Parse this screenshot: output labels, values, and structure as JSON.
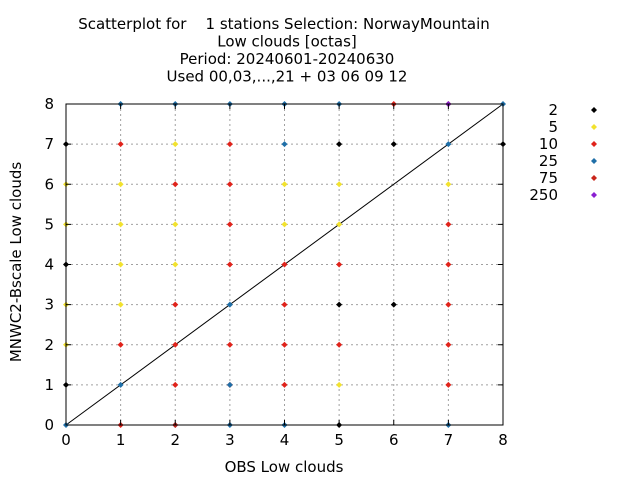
{
  "chart_data": {
    "type": "scatter",
    "title_lines": [
      "Scatterplot for    1 stations Selection: NorwayMountain",
      "Low clouds [octas]",
      "Period: 20240601-20240630",
      "Used 00,03,...,21 + 03 06 09 12"
    ],
    "xlabel": "OBS Low clouds",
    "ylabel": "MNWC2-Bscale Low clouds",
    "xlim": [
      0,
      8
    ],
    "ylim": [
      0,
      8
    ],
    "xticks": [
      "0",
      "1",
      "2",
      "3",
      "4",
      "5",
      "6",
      "7",
      "8"
    ],
    "yticks": [
      "0",
      "1",
      "2",
      "3",
      "4",
      "5",
      "6",
      "7",
      "8"
    ],
    "grid": true,
    "diagonal_line": true,
    "legend_position": "right",
    "series": [
      {
        "name": "2",
        "color": "#000000",
        "points": [
          [
            0,
            1
          ],
          [
            0,
            4
          ],
          [
            0,
            7
          ],
          [
            5,
            0
          ],
          [
            5,
            3
          ],
          [
            5,
            7
          ],
          [
            6,
            3
          ],
          [
            6,
            7
          ],
          [
            8,
            7
          ]
        ]
      },
      {
        "name": "5",
        "color": "#f2e22e",
        "points": [
          [
            0,
            2
          ],
          [
            0,
            3
          ],
          [
            0,
            5
          ],
          [
            0,
            6
          ],
          [
            1,
            3
          ],
          [
            1,
            4
          ],
          [
            1,
            5
          ],
          [
            1,
            6
          ],
          [
            2,
            4
          ],
          [
            2,
            5
          ],
          [
            2,
            7
          ],
          [
            4,
            5
          ],
          [
            4,
            6
          ],
          [
            5,
            1
          ],
          [
            5,
            5
          ],
          [
            5,
            6
          ],
          [
            7,
            6
          ]
        ]
      },
      {
        "name": "10",
        "color": "#e0231b",
        "points": [
          [
            1,
            0
          ],
          [
            1,
            2
          ],
          [
            1,
            7
          ],
          [
            2,
            1
          ],
          [
            2,
            2
          ],
          [
            2,
            3
          ],
          [
            2,
            6
          ],
          [
            3,
            1
          ],
          [
            3,
            2
          ],
          [
            3,
            4
          ],
          [
            3,
            5
          ],
          [
            3,
            6
          ],
          [
            3,
            7
          ],
          [
            4,
            1
          ],
          [
            4,
            2
          ],
          [
            4,
            3
          ],
          [
            4,
            4
          ],
          [
            5,
            2
          ],
          [
            5,
            4
          ],
          [
            6,
            8
          ],
          [
            7,
            1
          ],
          [
            7,
            2
          ],
          [
            7,
            3
          ],
          [
            7,
            4
          ],
          [
            7,
            5
          ]
        ]
      },
      {
        "name": "25",
        "color": "#1f6fa8",
        "points": [
          [
            0,
            0
          ],
          [
            1,
            1
          ],
          [
            1,
            8
          ],
          [
            2,
            0
          ],
          [
            2,
            8
          ],
          [
            3,
            0
          ],
          [
            3,
            1
          ],
          [
            3,
            3
          ],
          [
            3,
            8
          ],
          [
            4,
            0
          ],
          [
            4,
            7
          ],
          [
            4,
            8
          ],
          [
            5,
            8
          ],
          [
            7,
            0
          ],
          [
            7,
            7
          ],
          [
            8,
            8
          ]
        ]
      },
      {
        "name": "75",
        "color": "#c9251b",
        "points": [
          [
            2,
            0
          ],
          [
            7,
            8
          ]
        ]
      },
      {
        "name": "250",
        "color": "#8a1fd1",
        "points": [
          [
            7,
            8
          ]
        ]
      }
    ]
  }
}
